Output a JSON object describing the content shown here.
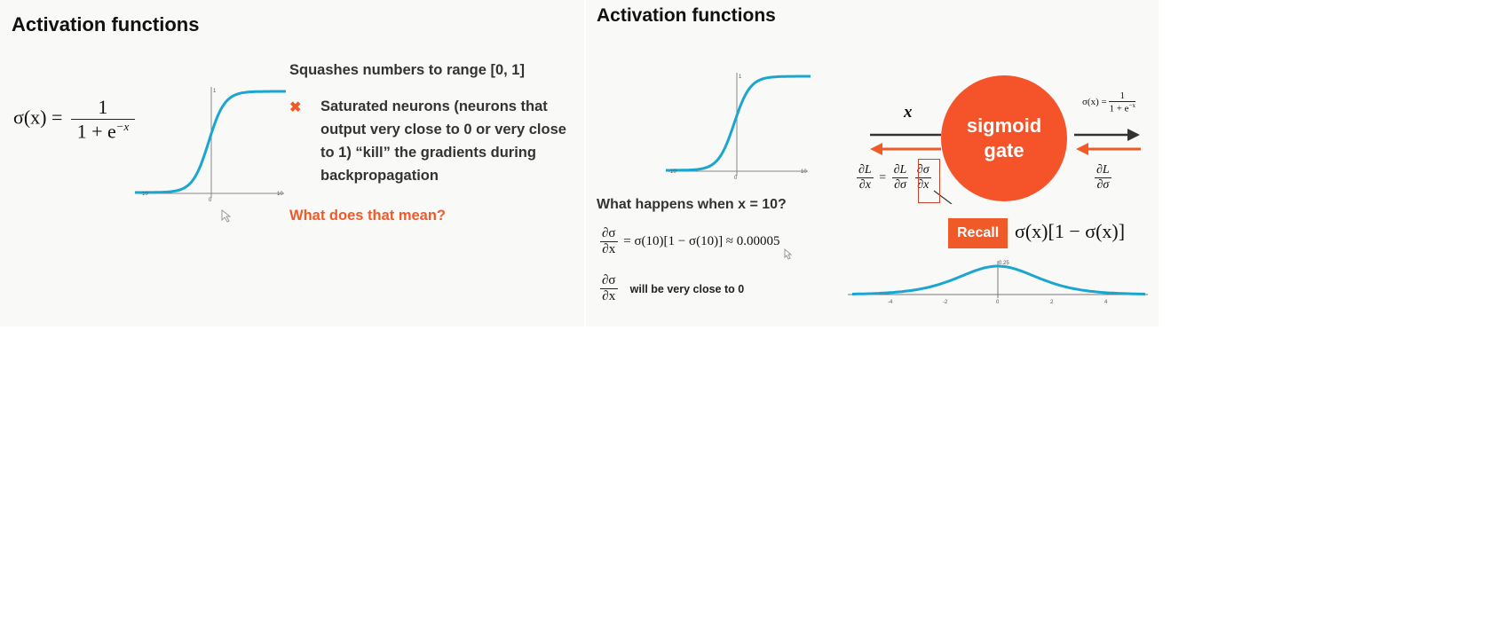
{
  "slide1": {
    "title": "Activation functions",
    "formula": {
      "lhs": "σ(x) =",
      "num": "1",
      "den": "1 + e",
      "den_exp": "−x"
    },
    "plot": {
      "y_tick": "1",
      "x_min": "-10",
      "x_max": "10",
      "x_zero": "0"
    },
    "squashes": "Squashes numbers to range [0, 1]",
    "bullet_icon": "✖",
    "bullet_lines": [
      "Saturated neurons (neurons that",
      "output very close to 0 or very close",
      "to 1) “kill” the gradients during",
      "backpropagation"
    ],
    "question": "What does that mean?",
    "colors": {
      "curve": "#1aa6cf",
      "accent": "#f05a28"
    }
  },
  "slide2": {
    "title": "Activation functions",
    "plot": {
      "y_tick": "1",
      "x_min": "-10",
      "x_max": "10",
      "x_zero": "0"
    },
    "what_happens": "What happens when x = 10?",
    "deriv_num": "∂σ",
    "deriv_den": "∂x",
    "deriv_expr": "= σ(10)[1 − σ(10)] ≈ 0.00005",
    "close_text": "will be very close to 0",
    "gate": {
      "line1": "sigmoid",
      "line2": "gate"
    },
    "x_label": "x",
    "sigma_def": {
      "lhs": "σ(x) =",
      "num": "1",
      "den": "1 + e",
      "den_exp": "−x"
    },
    "chain": {
      "lhs_num": "∂L",
      "lhs_den": "∂x",
      "eq": "=",
      "a_num": "∂L",
      "a_den": "∂σ",
      "b_num": "∂σ",
      "b_den": "∂x"
    },
    "right_grad": {
      "num": "∂L",
      "den": "∂σ"
    },
    "recall": "Recall",
    "recall_expr": "σ(x)[1 − σ(x)]",
    "bell": {
      "peak_label": "0.25",
      "ticks": [
        "-4",
        "-2",
        "0",
        "2",
        "4"
      ]
    }
  }
}
